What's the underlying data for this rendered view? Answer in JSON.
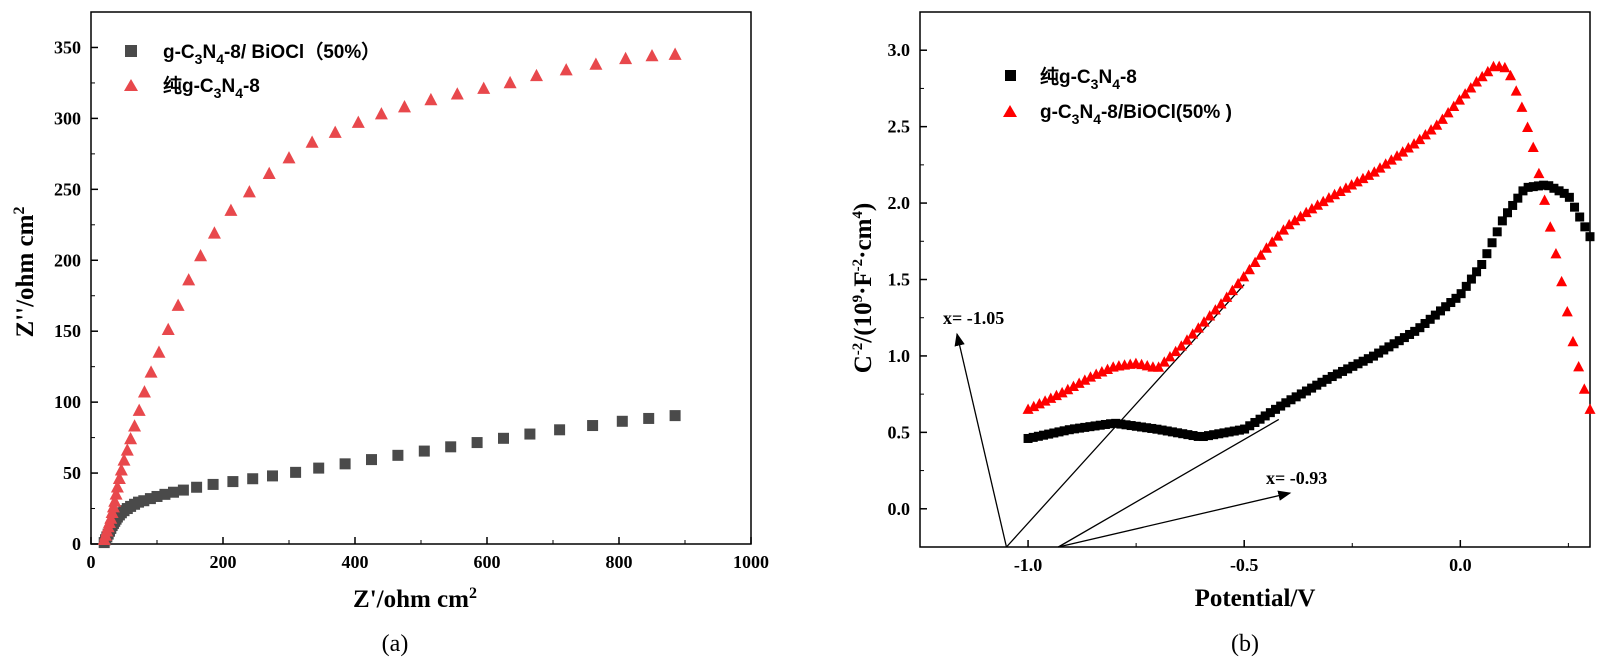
{
  "chart_data": [
    {
      "type": "scatter",
      "panel": "a",
      "caption": "(a)",
      "xlabel": "Z'/ohm cm",
      "xlabel_sup": "2",
      "ylabel": "Z''/ohm cm",
      "ylabel_sup": "2",
      "xlim": [
        0,
        1000
      ],
      "ylim": [
        0,
        375
      ],
      "xticks": [
        0,
        200,
        400,
        600,
        800,
        1000
      ],
      "yticks": [
        0,
        50,
        100,
        150,
        200,
        250,
        300,
        350
      ],
      "xtick_labels": [
        "0",
        "200",
        "400",
        "600",
        "800",
        "1000"
      ],
      "ytick_labels": [
        "0",
        "50",
        "100",
        "150",
        "200",
        "250",
        "300",
        "350"
      ],
      "legend": [
        {
          "pre": "g-C",
          "sub1": "3",
          "mid": "N",
          "sub2": "4",
          "post": "-8/ BiOCl（50%）",
          "marker": "square",
          "color": "#4a4a4a"
        },
        {
          "pre": "纯g-C",
          "sub1": "3",
          "mid": "N",
          "sub2": "4",
          "post": "-8",
          "marker": "triangle",
          "color": "#e8484c"
        }
      ],
      "series": [
        {
          "name": "g-C3N4-8/ BiOCl（50%）",
          "marker": "square",
          "color": "#4a4a4a",
          "x": [
            20,
            22,
            24,
            26,
            28,
            30,
            32,
            34,
            36,
            38,
            40,
            43,
            46,
            50,
            55,
            60,
            66,
            72,
            80,
            90,
            100,
            112,
            125,
            140,
            160,
            185,
            215,
            245,
            275,
            310,
            345,
            385,
            425,
            465,
            505,
            545,
            585,
            625,
            665,
            710,
            760,
            805,
            845,
            885
          ],
          "y": [
            1,
            3,
            5,
            7,
            9,
            11,
            13,
            14.5,
            16,
            17.5,
            19,
            20.5,
            22,
            23.5,
            25,
            26.5,
            28,
            29.5,
            30.5,
            32,
            33.5,
            35,
            36.5,
            38,
            40,
            42,
            44,
            46,
            48,
            50.5,
            53.5,
            56.5,
            59.5,
            62.5,
            65.5,
            68.5,
            71.5,
            74.5,
            77.5,
            80.5,
            83.5,
            86.5,
            88.5,
            90.5
          ]
        },
        {
          "name": "纯g-C3N4-8",
          "marker": "triangle",
          "color": "#e8484c",
          "x": [
            20,
            22,
            24,
            26,
            28,
            30,
            32,
            34,
            36,
            38,
            40,
            43,
            46,
            50,
            55,
            60,
            66,
            73,
            81,
            91,
            103,
            117,
            132,
            148,
            166,
            187,
            212,
            240,
            270,
            300,
            335,
            370,
            405,
            440,
            475,
            515,
            555,
            595,
            635,
            675,
            720,
            765,
            810,
            850,
            885
          ],
          "y": [
            3,
            6,
            9,
            12,
            15,
            18,
            22,
            26,
            30,
            35,
            40,
            46,
            52,
            59,
            66,
            74,
            83,
            94,
            107,
            121,
            135,
            151,
            168,
            186,
            203,
            219,
            235,
            248,
            261,
            272,
            283,
            290,
            297,
            303,
            308,
            313,
            317,
            321,
            325,
            330,
            334,
            338,
            342,
            344,
            345
          ]
        }
      ]
    },
    {
      "type": "scatter",
      "panel": "b",
      "caption": "(b)",
      "xlabel": "Potential/V",
      "ylabel_pre": "C",
      "ylabel_sup1": "-2",
      "ylabel_mid": "/(10",
      "ylabel_sup2": "9",
      "ylabel_mid2": "·F",
      "ylabel_sup3": "-2",
      "ylabel_mid3": "·cm",
      "ylabel_sup4": "4",
      "ylabel_post": ")",
      "xlim": [
        -1.25,
        0.3
      ],
      "ylim": [
        -0.25,
        3.25
      ],
      "xticks": [
        -1.0,
        -0.5,
        0.0
      ],
      "yticks": [
        0.0,
        0.5,
        1.0,
        1.5,
        2.0,
        2.5,
        3.0
      ],
      "xtick_labels": [
        "-1.0",
        "-0.5",
        "0.0"
      ],
      "ytick_labels": [
        "0.0",
        "0.5",
        "1.0",
        "1.5",
        "2.0",
        "2.5",
        "3.0"
      ],
      "legend": [
        {
          "pre": "纯g-C",
          "sub1": "3",
          "mid": "N",
          "sub2": "4",
          "post": "-8",
          "marker": "square",
          "color": "#000000"
        },
        {
          "pre": "g-C",
          "sub1": "3",
          "mid": "N",
          "sub2": "4",
          "post": "-8/BiOCl(50% )",
          "marker": "triangle",
          "color": "#ff0000"
        }
      ],
      "annotations": [
        {
          "text": "x= -1.05",
          "x_intercept": -1.05
        },
        {
          "text": "x= -0.93",
          "x_intercept": -0.93
        }
      ],
      "series": [
        {
          "name": "纯g-C3N4-8",
          "marker": "square",
          "color": "#000000",
          "x": [
            -1.0,
            -0.9,
            -0.8,
            -0.7,
            -0.6,
            -0.5,
            -0.4,
            -0.3,
            -0.2,
            -0.1,
            0.0,
            0.05,
            0.1,
            0.15,
            0.2,
            0.25,
            0.3
          ],
          "y": [
            0.46,
            0.52,
            0.56,
            0.52,
            0.47,
            0.52,
            0.7,
            0.86,
            1.0,
            1.17,
            1.4,
            1.6,
            1.9,
            2.1,
            2.12,
            2.05,
            1.78
          ]
        },
        {
          "name": "g-C3N4-8/BiOCl(50% )",
          "marker": "triangle",
          "color": "#ff0000",
          "x": [
            -1.0,
            -0.92,
            -0.85,
            -0.8,
            -0.75,
            -0.7,
            -0.65,
            -0.6,
            -0.55,
            -0.5,
            -0.45,
            -0.4,
            -0.35,
            -0.3,
            -0.25,
            -0.2,
            -0.15,
            -0.1,
            -0.05,
            0.0,
            0.04,
            0.08,
            0.11,
            0.14,
            0.17,
            0.2,
            0.23,
            0.26,
            0.28,
            0.3
          ],
          "y": [
            0.65,
            0.76,
            0.87,
            0.93,
            0.95,
            0.92,
            1.05,
            1.2,
            1.35,
            1.52,
            1.7,
            1.85,
            1.95,
            2.04,
            2.12,
            2.2,
            2.3,
            2.4,
            2.52,
            2.68,
            2.8,
            2.9,
            2.88,
            2.65,
            2.35,
            1.95,
            1.55,
            1.1,
            0.85,
            0.65
          ]
        }
      ]
    }
  ]
}
